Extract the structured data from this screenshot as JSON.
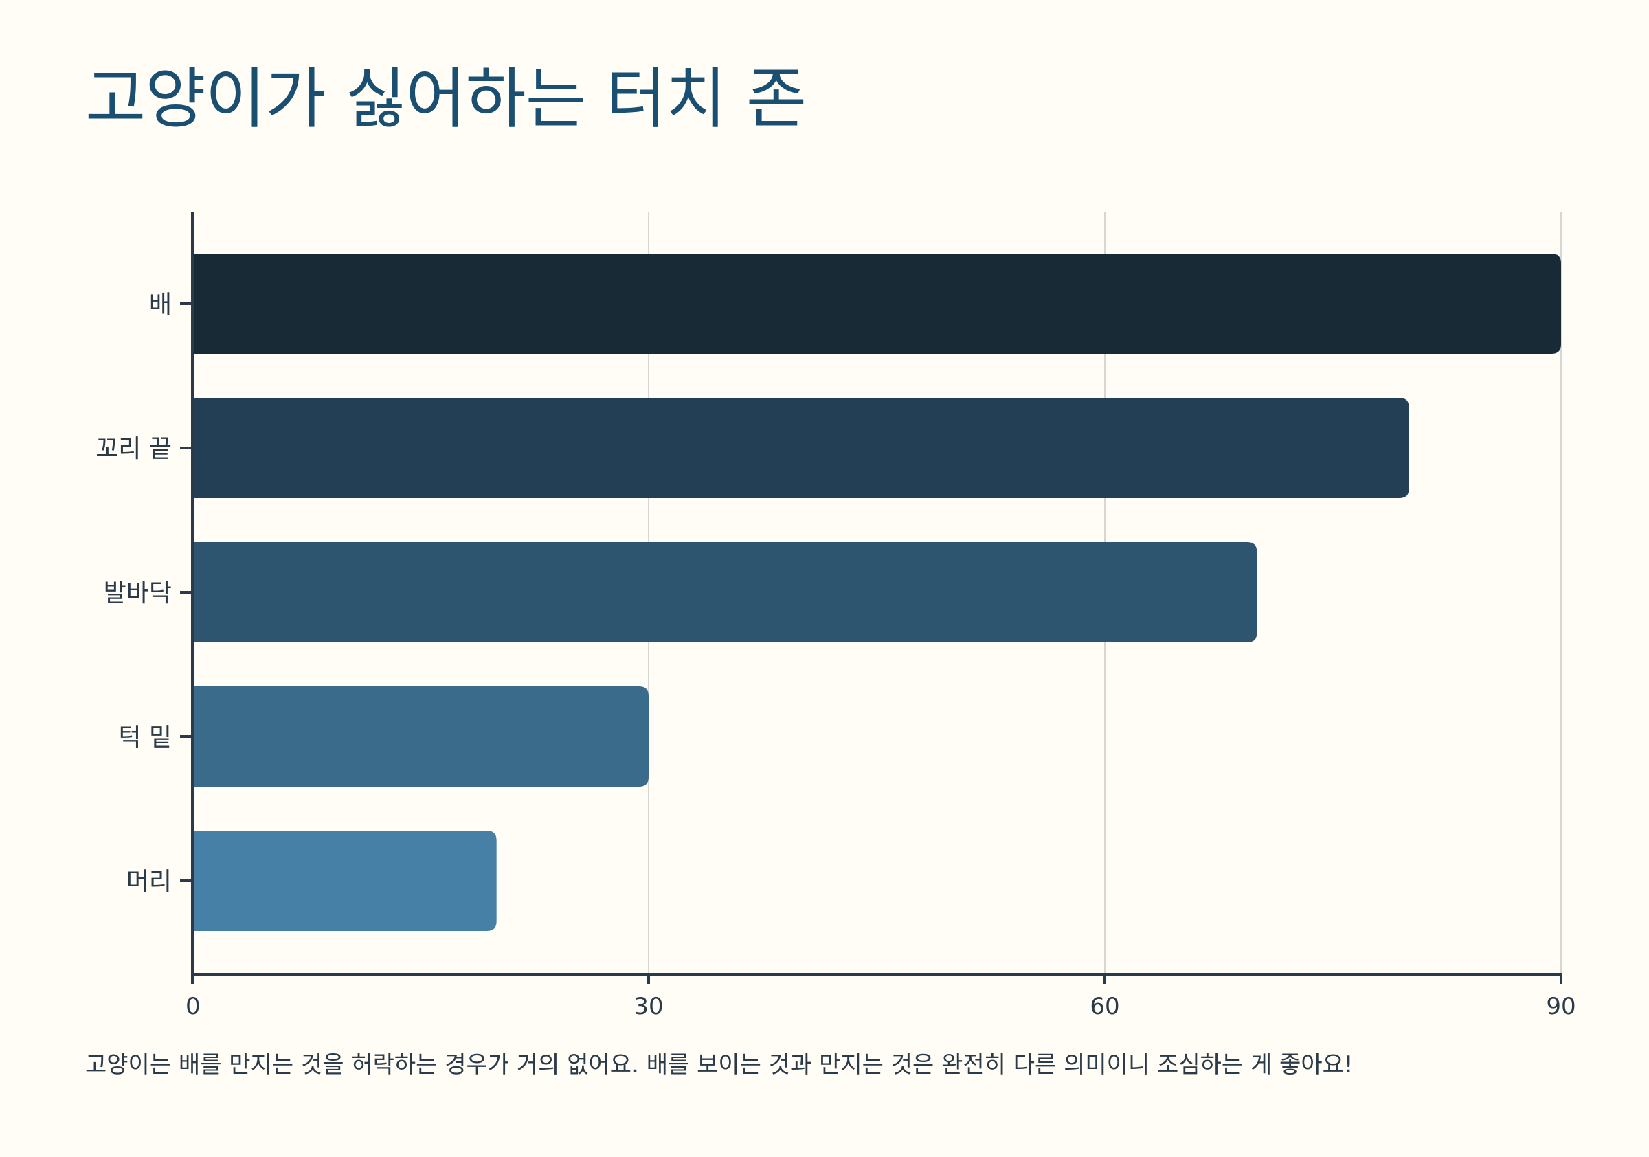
{
  "chart_data": {
    "type": "bar",
    "orientation": "horizontal",
    "title": "고양이가 싫어하는 터치 존",
    "categories": [
      "배",
      "꼬리 끝",
      "발바닥",
      "턱 밑",
      "머리"
    ],
    "values": [
      90,
      80,
      70,
      30,
      20
    ],
    "colors": [
      "#182a36",
      "#223f55",
      "#2d556f",
      "#3a6b8a",
      "#4680a6"
    ],
    "xlabel": "",
    "ylabel": "",
    "xlim": [
      0,
      90
    ],
    "xticks": [
      0,
      30,
      60,
      90
    ],
    "grid": true,
    "note": "고양이는 배를 만지는 것을 허락하는 경우가 거의 없어요. 배를 보이는 것과 만지는 것은 완전히 다른 의미이니 조심하는 게 좋아요!"
  }
}
